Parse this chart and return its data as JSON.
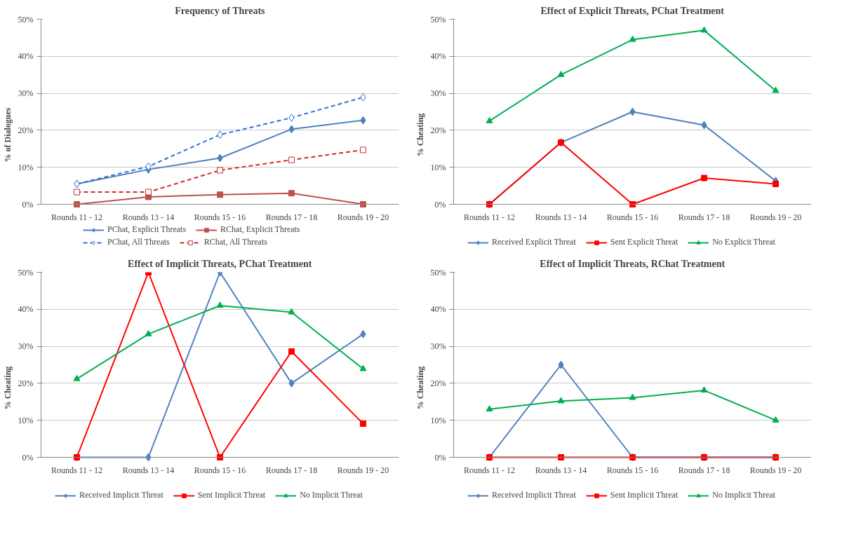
{
  "chart_data": [
    {
      "type": "line",
      "title": "Frequency of Threats",
      "ylabel": "% of Dialogues",
      "categories": [
        "Rounds 11 - 12",
        "Rounds 13 - 14",
        "Rounds 15 - 16",
        "Rounds 17 - 18",
        "Rounds 19 - 20"
      ],
      "ylim": [
        0,
        50
      ],
      "yticks": [
        {
          "value": 0,
          "label": "0%"
        },
        {
          "value": 10,
          "label": "10%"
        },
        {
          "value": 20,
          "label": "20%"
        },
        {
          "value": 30,
          "label": "30%"
        },
        {
          "value": 40,
          "label": "40%"
        },
        {
          "value": 50,
          "label": "50%"
        }
      ],
      "grid": "y",
      "legend": "bottom",
      "series": [
        {
          "name": "PChat, Explicit Threats",
          "color": "#4f81bd",
          "marker": "diamond",
          "line_style": "solid",
          "values": [
            5.5,
            9.4,
            12.5,
            20.3,
            22.7
          ]
        },
        {
          "name": "RChat, Explicit Threats",
          "color": "#c0504d",
          "marker": "square",
          "line_style": "solid",
          "values": [
            0,
            2.0,
            2.6,
            3.0,
            0
          ]
        },
        {
          "name": "PChat, All Threats",
          "color": "#2e75d6",
          "marker": "diamond",
          "line_style": "dashed",
          "values": [
            5.5,
            10.2,
            18.8,
            23.4,
            28.9
          ]
        },
        {
          "name": "RChat, All Threats",
          "color": "#d42a2a",
          "marker": "square",
          "line_style": "dashed",
          "values": [
            3.3,
            3.3,
            9.2,
            12.0,
            14.7
          ]
        }
      ]
    },
    {
      "type": "line",
      "title": "Effect of Explicit Threats, PChat Treatment",
      "ylabel": "% Cheating",
      "categories": [
        "Rounds 11 - 12",
        "Rounds 13 - 14",
        "Rounds 15 - 16",
        "Rounds 17 - 18",
        "Rounds 19 - 20"
      ],
      "ylim": [
        0,
        50
      ],
      "yticks": [
        {
          "value": 0,
          "label": "0%"
        },
        {
          "value": 10,
          "label": "10%"
        },
        {
          "value": 20,
          "label": "20%"
        },
        {
          "value": 30,
          "label": "30%"
        },
        {
          "value": 40,
          "label": "40%"
        },
        {
          "value": 50,
          "label": "50%"
        }
      ],
      "grid": "y",
      "legend": "bottom",
      "series": [
        {
          "name": "Received Explicit Threat",
          "color": "#4f81bd",
          "marker": "diamond",
          "line_style": "solid",
          "values": [
            0,
            16.7,
            25.0,
            21.4,
            6.3
          ]
        },
        {
          "name": "Sent Explicit Threat",
          "color": "#ff0000",
          "marker": "square",
          "line_style": "solid",
          "values": [
            0,
            16.7,
            0,
            7.1,
            5.5
          ]
        },
        {
          "name": "No Explicit Threat",
          "color": "#00b050",
          "marker": "triangle",
          "line_style": "solid",
          "values": [
            22.5,
            35.0,
            44.5,
            47.0,
            30.7
          ]
        }
      ]
    },
    {
      "type": "line",
      "title": "Effect of Implicit Threats, PChat Treatment",
      "ylabel": "% Cheating",
      "categories": [
        "Rounds 11 - 12",
        "Rounds 13 - 14",
        "Rounds 15 - 16",
        "Rounds 17 - 18",
        "Rounds 19 - 20"
      ],
      "ylim": [
        0,
        50
      ],
      "yticks": [
        {
          "value": 0,
          "label": "0%"
        },
        {
          "value": 10,
          "label": "10%"
        },
        {
          "value": 20,
          "label": "20%"
        },
        {
          "value": 30,
          "label": "30%"
        },
        {
          "value": 40,
          "label": "40%"
        },
        {
          "value": 50,
          "label": "50%"
        }
      ],
      "grid": "y",
      "legend": "bottom",
      "series": [
        {
          "name": "Received Implicit Threat",
          "color": "#4f81bd",
          "marker": "diamond",
          "line_style": "solid",
          "values": [
            0,
            0,
            50,
            20,
            33.3
          ]
        },
        {
          "name": "Sent Implicit Threat",
          "color": "#ff0000",
          "marker": "square",
          "line_style": "solid",
          "values": [
            0,
            50,
            0,
            28.6,
            9.1
          ]
        },
        {
          "name": "No Implicit Threat",
          "color": "#00b050",
          "marker": "triangle",
          "line_style": "solid",
          "values": [
            21.2,
            33.3,
            41.0,
            39.2,
            23.9
          ]
        }
      ]
    },
    {
      "type": "line",
      "title": "Effect of Implicit Threats, RChat Treatment",
      "ylabel": "% Cheating",
      "categories": [
        "Rounds 11 - 12",
        "Rounds 13 - 14",
        "Rounds 15 - 16",
        "Rounds 17 - 18",
        "Rounds 19 - 20"
      ],
      "ylim": [
        0,
        50
      ],
      "yticks": [
        {
          "value": 0,
          "label": "0%"
        },
        {
          "value": 10,
          "label": "10%"
        },
        {
          "value": 20,
          "label": "20%"
        },
        {
          "value": 30,
          "label": "30%"
        },
        {
          "value": 40,
          "label": "40%"
        },
        {
          "value": 50,
          "label": "50%"
        }
      ],
      "grid": "y",
      "legend": "bottom",
      "series": [
        {
          "name": "Received Implicit Threat",
          "color": "#4f81bd",
          "marker": "diamond",
          "line_style": "solid",
          "values": [
            0,
            25,
            0,
            0,
            0
          ]
        },
        {
          "name": "Sent Implicit Threat",
          "color": "#ff0000",
          "marker": "square",
          "line_style": "solid",
          "values": [
            0,
            0,
            0,
            0,
            0
          ]
        },
        {
          "name": "No Implicit Threat",
          "color": "#00b050",
          "marker": "triangle",
          "line_style": "solid",
          "values": [
            13.0,
            15.2,
            16.1,
            18.1,
            10.0
          ]
        }
      ]
    }
  ]
}
